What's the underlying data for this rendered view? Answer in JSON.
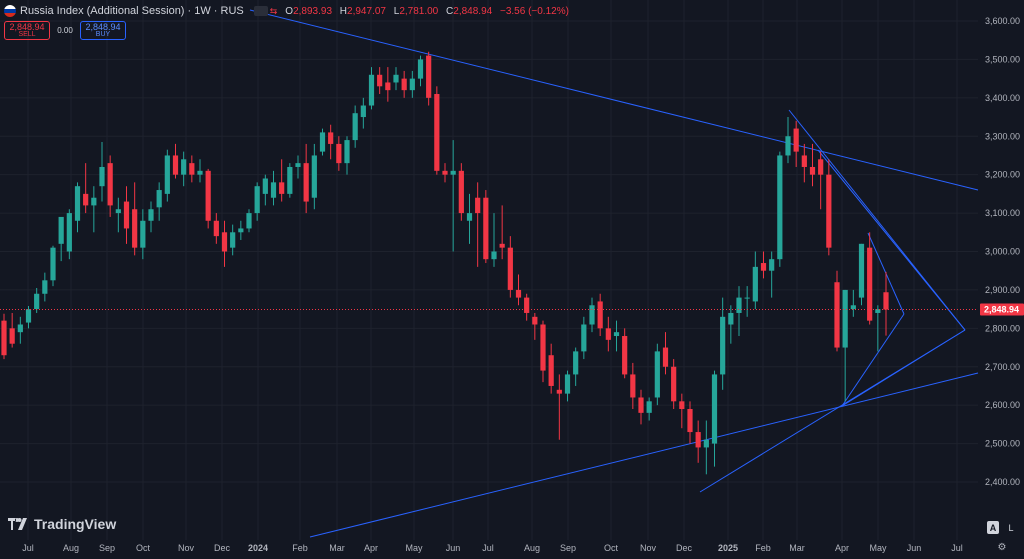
{
  "header": {
    "title": "Russia Index (Additional Session) · 1W · RUS",
    "ohlc": [
      {
        "k": "O",
        "v": "2,893.93"
      },
      {
        "k": "H",
        "v": "2,947.07"
      },
      {
        "k": "L",
        "v": "2,781.00"
      },
      {
        "k": "C",
        "v": "2,848.94"
      },
      {
        "k": "",
        "v": "−3.56 (−0.12%)"
      }
    ]
  },
  "trade": {
    "sell_price": "2,848.94",
    "sell_label": "SELL",
    "spread": "0.00",
    "buy_price": "2,848.94",
    "buy_label": "BUY"
  },
  "brand": "TradingView",
  "controls": {
    "auto": "A",
    "log": "L"
  },
  "colors": {
    "background": "#131722",
    "up": "#26a69a",
    "down": "#f23645",
    "trendline": "#2962ff",
    "grid": "#1e222d",
    "price_line": "#f23645"
  },
  "chart_data": {
    "type": "candlestick",
    "interval": "1W",
    "y_ticks": [
      "2,400.00",
      "2,500.00",
      "2,600.00",
      "2,700.00",
      "2,800.00",
      "2,900.00",
      "3,000.00",
      "3,100.00",
      "3,200.00",
      "3,300.00",
      "3,400.00",
      "3,500.00",
      "3,600.00"
    ],
    "ylim": [
      2300,
      3640
    ],
    "x_ticks": [
      "Jul",
      "Aug",
      "Sep",
      "Oct",
      "Nov",
      "Dec",
      "2024",
      "Feb",
      "Mar",
      "Apr",
      "May",
      "Jun",
      "Jul",
      "Aug",
      "Sep",
      "Oct",
      "Nov",
      "Dec",
      "2025",
      "Feb",
      "Mar",
      "Apr",
      "May",
      "Jun",
      "Jul"
    ],
    "last_price": 2848.94,
    "last_price_label": "2,848.94",
    "grid": true,
    "candles": [
      {
        "o": 2820,
        "h": 2838,
        "l": 2720,
        "c": 2730
      },
      {
        "o": 2800,
        "h": 2840,
        "l": 2750,
        "c": 2760
      },
      {
        "o": 2790,
        "h": 2830,
        "l": 2760,
        "c": 2810
      },
      {
        "o": 2815,
        "h": 2858,
        "l": 2800,
        "c": 2850
      },
      {
        "o": 2850,
        "h": 2905,
        "l": 2840,
        "c": 2890
      },
      {
        "o": 2890,
        "h": 2945,
        "l": 2870,
        "c": 2925
      },
      {
        "o": 2925,
        "h": 3015,
        "l": 2910,
        "c": 3010
      },
      {
        "o": 3020,
        "h": 3080,
        "l": 2975,
        "c": 3090
      },
      {
        "o": 3000,
        "h": 3110,
        "l": 2980,
        "c": 3100
      },
      {
        "o": 3080,
        "h": 3180,
        "l": 3050,
        "c": 3170
      },
      {
        "o": 3150,
        "h": 3230,
        "l": 3100,
        "c": 3120
      },
      {
        "o": 3120,
        "h": 3170,
        "l": 3050,
        "c": 3140
      },
      {
        "o": 3170,
        "h": 3285,
        "l": 3130,
        "c": 3220
      },
      {
        "o": 3230,
        "h": 3250,
        "l": 3090,
        "c": 3120
      },
      {
        "o": 3100,
        "h": 3140,
        "l": 3050,
        "c": 3110
      },
      {
        "o": 3130,
        "h": 3170,
        "l": 3020,
        "c": 3060
      },
      {
        "o": 3110,
        "h": 3180,
        "l": 2990,
        "c": 3010
      },
      {
        "o": 3010,
        "h": 3110,
        "l": 2980,
        "c": 3080
      },
      {
        "o": 3080,
        "h": 3130,
        "l": 3050,
        "c": 3110
      },
      {
        "o": 3115,
        "h": 3180,
        "l": 3080,
        "c": 3160
      },
      {
        "o": 3150,
        "h": 3265,
        "l": 3130,
        "c": 3250
      },
      {
        "o": 3250,
        "h": 3280,
        "l": 3190,
        "c": 3200
      },
      {
        "o": 3200,
        "h": 3260,
        "l": 3170,
        "c": 3240
      },
      {
        "o": 3230,
        "h": 3250,
        "l": 3180,
        "c": 3200
      },
      {
        "o": 3200,
        "h": 3240,
        "l": 3180,
        "c": 3210
      },
      {
        "o": 3210,
        "h": 3215,
        "l": 3060,
        "c": 3080
      },
      {
        "o": 3080,
        "h": 3100,
        "l": 3020,
        "c": 3040
      },
      {
        "o": 3050,
        "h": 3080,
        "l": 2960,
        "c": 3000
      },
      {
        "o": 3010,
        "h": 3070,
        "l": 2990,
        "c": 3050
      },
      {
        "o": 3050,
        "h": 3080,
        "l": 3030,
        "c": 3060
      },
      {
        "o": 3060,
        "h": 3110,
        "l": 3050,
        "c": 3100
      },
      {
        "o": 3100,
        "h": 3180,
        "l": 3080,
        "c": 3170
      },
      {
        "o": 3150,
        "h": 3200,
        "l": 3120,
        "c": 3190
      },
      {
        "o": 3140,
        "h": 3210,
        "l": 3120,
        "c": 3180
      },
      {
        "o": 3180,
        "h": 3240,
        "l": 3130,
        "c": 3150
      },
      {
        "o": 3150,
        "h": 3230,
        "l": 3140,
        "c": 3220
      },
      {
        "o": 3220,
        "h": 3250,
        "l": 3190,
        "c": 3230
      },
      {
        "o": 3230,
        "h": 3280,
        "l": 3100,
        "c": 3130
      },
      {
        "o": 3140,
        "h": 3280,
        "l": 3110,
        "c": 3250
      },
      {
        "o": 3260,
        "h": 3320,
        "l": 3250,
        "c": 3310
      },
      {
        "o": 3310,
        "h": 3330,
        "l": 3240,
        "c": 3280
      },
      {
        "o": 3280,
        "h": 3300,
        "l": 3210,
        "c": 3230
      },
      {
        "o": 3230,
        "h": 3300,
        "l": 3200,
        "c": 3290
      },
      {
        "o": 3290,
        "h": 3380,
        "l": 3270,
        "c": 3360
      },
      {
        "o": 3350,
        "h": 3400,
        "l": 3320,
        "c": 3380
      },
      {
        "o": 3380,
        "h": 3480,
        "l": 3370,
        "c": 3460
      },
      {
        "o": 3460,
        "h": 3480,
        "l": 3410,
        "c": 3430
      },
      {
        "o": 3440,
        "h": 3480,
        "l": 3390,
        "c": 3420
      },
      {
        "o": 3440,
        "h": 3480,
        "l": 3420,
        "c": 3460
      },
      {
        "o": 3450,
        "h": 3470,
        "l": 3400,
        "c": 3420
      },
      {
        "o": 3420,
        "h": 3470,
        "l": 3400,
        "c": 3450
      },
      {
        "o": 3450,
        "h": 3510,
        "l": 3430,
        "c": 3500
      },
      {
        "o": 3510,
        "h": 3520,
        "l": 3380,
        "c": 3400
      },
      {
        "o": 3410,
        "h": 3430,
        "l": 3200,
        "c": 3210
      },
      {
        "o": 3210,
        "h": 3230,
        "l": 3180,
        "c": 3200
      },
      {
        "o": 3200,
        "h": 3290,
        "l": 3000,
        "c": 3210
      },
      {
        "o": 3210,
        "h": 3230,
        "l": 3080,
        "c": 3100
      },
      {
        "o": 3080,
        "h": 3150,
        "l": 3020,
        "c": 3100
      },
      {
        "o": 3140,
        "h": 3180,
        "l": 2960,
        "c": 3100
      },
      {
        "o": 3140,
        "h": 3160,
        "l": 2970,
        "c": 2980
      },
      {
        "o": 2980,
        "h": 3100,
        "l": 2960,
        "c": 3000
      },
      {
        "o": 3020,
        "h": 3120,
        "l": 2980,
        "c": 3010
      },
      {
        "o": 3010,
        "h": 3040,
        "l": 2880,
        "c": 2900
      },
      {
        "o": 2900,
        "h": 2940,
        "l": 2860,
        "c": 2880
      },
      {
        "o": 2880,
        "h": 2890,
        "l": 2820,
        "c": 2840
      },
      {
        "o": 2830,
        "h": 2840,
        "l": 2770,
        "c": 2810
      },
      {
        "o": 2810,
        "h": 2820,
        "l": 2660,
        "c": 2690
      },
      {
        "o": 2730,
        "h": 2760,
        "l": 2630,
        "c": 2650
      },
      {
        "o": 2640,
        "h": 2680,
        "l": 2510,
        "c": 2630
      },
      {
        "o": 2630,
        "h": 2690,
        "l": 2610,
        "c": 2680
      },
      {
        "o": 2680,
        "h": 2750,
        "l": 2650,
        "c": 2740
      },
      {
        "o": 2740,
        "h": 2830,
        "l": 2720,
        "c": 2810
      },
      {
        "o": 2810,
        "h": 2880,
        "l": 2790,
        "c": 2860
      },
      {
        "o": 2870,
        "h": 2890,
        "l": 2780,
        "c": 2800
      },
      {
        "o": 2800,
        "h": 2830,
        "l": 2740,
        "c": 2770
      },
      {
        "o": 2780,
        "h": 2820,
        "l": 2740,
        "c": 2790
      },
      {
        "o": 2780,
        "h": 2800,
        "l": 2670,
        "c": 2680
      },
      {
        "o": 2680,
        "h": 2710,
        "l": 2590,
        "c": 2620
      },
      {
        "o": 2620,
        "h": 2640,
        "l": 2550,
        "c": 2580
      },
      {
        "o": 2580,
        "h": 2620,
        "l": 2560,
        "c": 2610
      },
      {
        "o": 2620,
        "h": 2760,
        "l": 2600,
        "c": 2740
      },
      {
        "o": 2750,
        "h": 2790,
        "l": 2680,
        "c": 2700
      },
      {
        "o": 2700,
        "h": 2720,
        "l": 2590,
        "c": 2610
      },
      {
        "o": 2610,
        "h": 2630,
        "l": 2540,
        "c": 2590
      },
      {
        "o": 2590,
        "h": 2610,
        "l": 2500,
        "c": 2530
      },
      {
        "o": 2530,
        "h": 2560,
        "l": 2450,
        "c": 2490
      },
      {
        "o": 2490,
        "h": 2560,
        "l": 2420,
        "c": 2510
      },
      {
        "o": 2500,
        "h": 2690,
        "l": 2440,
        "c": 2680
      },
      {
        "o": 2680,
        "h": 2880,
        "l": 2640,
        "c": 2830
      },
      {
        "o": 2810,
        "h": 2860,
        "l": 2760,
        "c": 2840
      },
      {
        "o": 2840,
        "h": 2910,
        "l": 2780,
        "c": 2880
      },
      {
        "o": 2880,
        "h": 2910,
        "l": 2830,
        "c": 2880
      },
      {
        "o": 2870,
        "h": 3000,
        "l": 2850,
        "c": 2960
      },
      {
        "o": 2970,
        "h": 3000,
        "l": 2930,
        "c": 2950
      },
      {
        "o": 2950,
        "h": 3000,
        "l": 2880,
        "c": 2980
      },
      {
        "o": 2980,
        "h": 3260,
        "l": 2960,
        "c": 3250
      },
      {
        "o": 3250,
        "h": 3350,
        "l": 3230,
        "c": 3300
      },
      {
        "o": 3320,
        "h": 3340,
        "l": 3220,
        "c": 3260
      },
      {
        "o": 3250,
        "h": 3280,
        "l": 3180,
        "c": 3220
      },
      {
        "o": 3220,
        "h": 3280,
        "l": 3170,
        "c": 3200
      },
      {
        "o": 3240,
        "h": 3260,
        "l": 3110,
        "c": 3200
      },
      {
        "o": 3200,
        "h": 3240,
        "l": 2990,
        "c": 3010
      },
      {
        "o": 2920,
        "h": 2950,
        "l": 2740,
        "c": 2750
      },
      {
        "o": 2750,
        "h": 2900,
        "l": 2610,
        "c": 2900
      },
      {
        "o": 2850,
        "h": 2900,
        "l": 2830,
        "c": 2860
      },
      {
        "o": 2880,
        "h": 3020,
        "l": 2860,
        "c": 3020
      },
      {
        "o": 3010,
        "h": 3050,
        "l": 2810,
        "c": 2820
      },
      {
        "o": 2840,
        "h": 2860,
        "l": 2740,
        "c": 2850
      },
      {
        "o": 2893.93,
        "h": 2947.07,
        "l": 2781.0,
        "c": 2848.94
      }
    ],
    "trendlines": [
      {
        "from": [
          "2023-06",
          3680
        ],
        "to": [
          "2025-07",
          3160
        ]
      },
      {
        "from": [
          "2024-02",
          2300
        ],
        "to": [
          "2025-07",
          2680
        ]
      },
      {
        "from": [
          "2024-12",
          2370
        ],
        "to": [
          "2025-07",
          2790
        ]
      },
      {
        "from": [
          "2025-02",
          3370
        ],
        "to": [
          "2025-07",
          2790
        ]
      },
      {
        "from": [
          "2025-04",
          3050
        ],
        "to": [
          "2025-05",
          2830
        ]
      },
      {
        "from": [
          "2025-04",
          2600
        ],
        "to": [
          "2025-05",
          2830
        ]
      }
    ]
  }
}
